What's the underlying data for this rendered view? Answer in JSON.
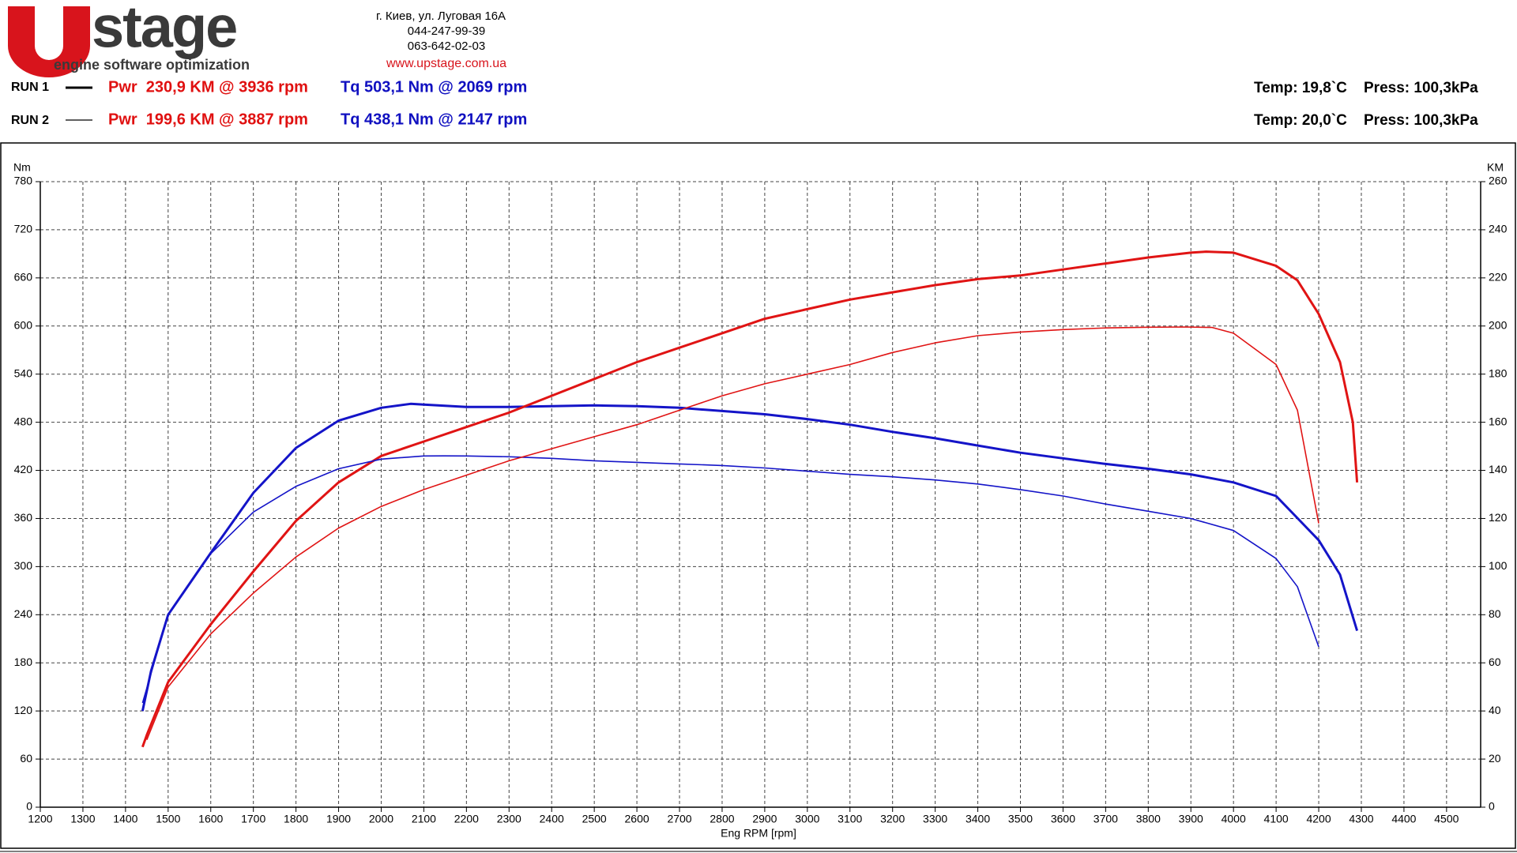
{
  "header": {
    "logo_text": "stage",
    "tagline": "engine software optimization",
    "contact": [
      "г. Киев, ул. Луговая 16А",
      "044-247-99-39",
      "063-642-02-03"
    ],
    "website": "www.upstage.com.ua"
  },
  "runs": [
    {
      "label": "RUN 1",
      "power": "Pwr  230,9 KM @ 3936 rpm",
      "torque": "Tq 503,1 Nm @ 2069 rpm",
      "temp": "Temp: 19,8`C",
      "press": "Press: 100,3kPa"
    },
    {
      "label": "RUN 2",
      "power": "Pwr  199,6 KM @ 3887 rpm",
      "torque": "Tq 438,1 Nm @ 2147 rpm",
      "temp": "Temp: 20,0`C",
      "press": "Press: 100,3kPa"
    }
  ],
  "chart_data": {
    "type": "line",
    "x_label": "Eng RPM [rpm]",
    "y_label": "Nm",
    "y2_label": "KM",
    "xlim": [
      1200,
      4580
    ],
    "xticks": [
      1200,
      1300,
      1400,
      1500,
      1600,
      1700,
      1800,
      1900,
      2000,
      2100,
      2200,
      2300,
      2400,
      2500,
      2600,
      2700,
      2800,
      2900,
      3000,
      3100,
      3200,
      3300,
      3400,
      3500,
      3600,
      3700,
      3800,
      3900,
      4000,
      4100,
      4200,
      4300,
      4400,
      4500
    ],
    "ylim": [
      0,
      780
    ],
    "yticks": [
      0,
      60,
      120,
      180,
      240,
      300,
      360,
      420,
      480,
      540,
      600,
      660,
      720,
      780
    ],
    "y2lim": [
      0,
      260
    ],
    "y2ticks": [
      0,
      20,
      40,
      60,
      80,
      100,
      120,
      140,
      160,
      180,
      200,
      220,
      240,
      260
    ],
    "grid": true,
    "series": [
      {
        "color": "#1414c8",
        "axis": "y",
        "x": [
          1440,
          1460,
          1500,
          1600,
          1700,
          1800,
          1900,
          2000,
          2069,
          2100,
          2200,
          2300,
          2400,
          2500,
          2600,
          2700,
          2800,
          2900,
          3000,
          3100,
          3200,
          3300,
          3400,
          3500,
          3600,
          3700,
          3800,
          3900,
          4000,
          4100,
          4200,
          4250,
          4290
        ],
        "values": [
          120,
          170,
          240,
          317,
          392,
          448,
          482,
          498,
          503,
          502,
          499,
          499,
          500,
          501,
          500,
          498,
          494,
          490,
          484,
          477,
          468,
          460,
          451,
          442,
          435,
          428,
          422,
          415,
          405,
          388,
          333,
          290,
          220
        ]
      },
      {
        "color": "#e01414",
        "axis": "y2",
        "x": [
          1440,
          1450,
          1500,
          1600,
          1700,
          1800,
          1900,
          2000,
          2100,
          2200,
          2300,
          2400,
          2500,
          2600,
          2700,
          2800,
          2900,
          3000,
          3100,
          3200,
          3300,
          3400,
          3500,
          3600,
          3700,
          3800,
          3900,
          3936,
          4000,
          4100,
          4150,
          4200,
          4250,
          4280,
          4290
        ],
        "values": [
          25,
          30,
          52,
          76,
          98,
          119,
          135,
          146,
          152,
          158,
          164,
          171,
          178,
          185,
          191,
          197,
          203,
          207,
          211,
          214,
          217,
          219.5,
          221,
          223.5,
          226,
          228.5,
          230.5,
          230.9,
          230.5,
          225,
          219,
          205,
          185,
          160,
          135
        ]
      },
      {
        "color": "#1414c8",
        "axis": "y",
        "x": [
          1440,
          1500,
          1600,
          1700,
          1800,
          1900,
          2000,
          2100,
          2147,
          2200,
          2300,
          2400,
          2500,
          2600,
          2700,
          2800,
          2900,
          3000,
          3100,
          3200,
          3300,
          3400,
          3500,
          3600,
          3700,
          3800,
          3900,
          4000,
          4100,
          4150,
          4200
        ],
        "values": [
          130,
          240,
          316,
          368,
          400,
          422,
          434,
          438,
          438.1,
          438,
          437,
          435,
          432,
          430,
          428,
          426,
          423,
          419,
          415,
          412,
          408,
          403,
          396,
          388,
          378,
          369,
          360,
          345,
          310,
          275,
          200
        ]
      },
      {
        "color": "#e01414",
        "axis": "y2",
        "x": [
          1450,
          1500,
          1600,
          1700,
          1800,
          1900,
          2000,
          2100,
          2200,
          2300,
          2400,
          2500,
          2600,
          2700,
          2800,
          2900,
          3000,
          3100,
          3200,
          3300,
          3400,
          3500,
          3600,
          3700,
          3800,
          3887,
          3950,
          4000,
          4100,
          4150,
          4200
        ],
        "values": [
          28,
          50,
          72,
          89,
          104,
          116,
          125,
          132,
          138,
          144,
          149,
          154,
          159,
          165,
          171,
          176,
          180,
          184,
          189,
          193,
          196,
          197.5,
          198.5,
          199.2,
          199.5,
          199.6,
          199.4,
          197,
          184,
          165,
          118
        ]
      }
    ]
  }
}
